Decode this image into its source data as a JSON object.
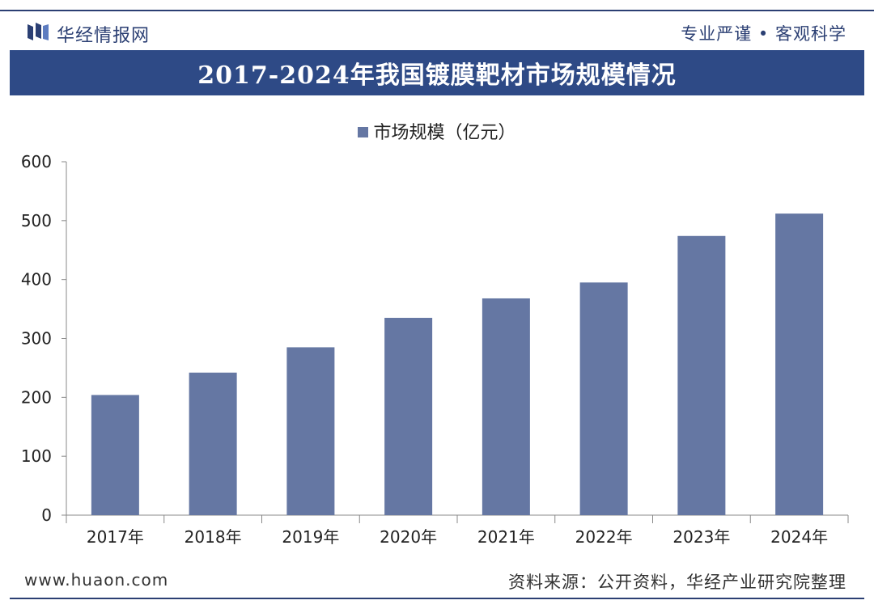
{
  "header": {
    "brand": "华经情报网",
    "slogan": "专业严谨 • 客观科学"
  },
  "colors": {
    "accent": "#2e4a86",
    "bar": "#6577a3"
  },
  "footer": {
    "site": "www.huaon.com",
    "source": "资料来源：公开资料，华经产业研究院整理"
  },
  "chart_data": {
    "type": "bar",
    "title": "2017-2024年我国镀膜靶材市场规模情况",
    "categories": [
      "2017年",
      "2018年",
      "2019年",
      "2020年",
      "2021年",
      "2022年",
      "2023年",
      "2024年"
    ],
    "series": [
      {
        "name": "市场规模（亿元）",
        "values": [
          204,
          242,
          285,
          335,
          368,
          395,
          474,
          512
        ]
      }
    ],
    "yticks": [
      "0",
      "100",
      "200",
      "300",
      "400",
      "500",
      "600"
    ],
    "ylim": [
      0,
      600
    ],
    "legend": "top-center",
    "grid": false
  }
}
